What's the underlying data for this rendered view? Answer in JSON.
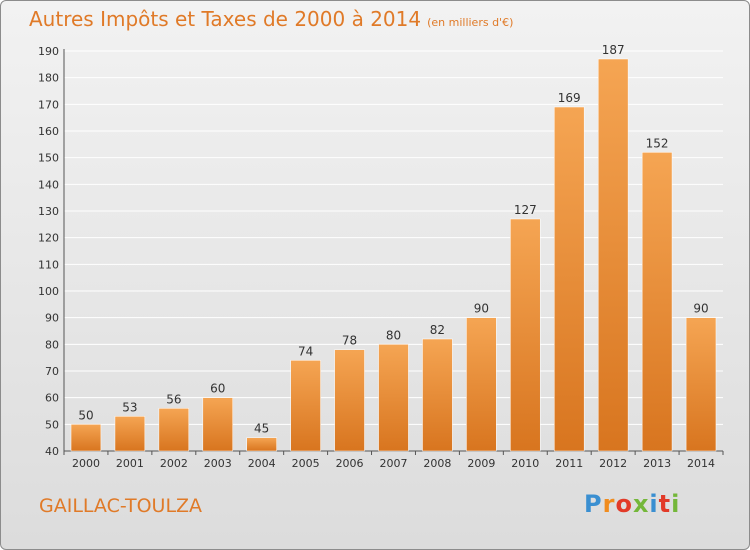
{
  "header": {
    "title": "Autres Impôts et Taxes de 2000 à 2014",
    "subtitle": "(en milliers d'€)"
  },
  "footer": {
    "commune": "GAILLAC-TOULZA",
    "logo_text": "Proxiti",
    "logo_colors": [
      "#3a8fd1",
      "#f08c1e",
      "#e23a28",
      "#74b73a",
      "#3a8fd1",
      "#e23a28",
      "#74b73a"
    ]
  },
  "colors": {
    "accent": "#e07a28",
    "bar_light": "#f5a553",
    "bar_dark": "#d8751f",
    "grid": "#ffffff"
  },
  "chart_data": {
    "type": "bar",
    "title": "Autres Impôts et Taxes de 2000 à 2014",
    "subtitle": "(en milliers d'€)",
    "categories": [
      "2000",
      "2001",
      "2002",
      "2003",
      "2004",
      "2005",
      "2006",
      "2007",
      "2008",
      "2009",
      "2010",
      "2011",
      "2012",
      "2013",
      "2014"
    ],
    "values": [
      50,
      53,
      56,
      60,
      45,
      74,
      78,
      80,
      82,
      90,
      127,
      169,
      187,
      152,
      90
    ],
    "ylim": [
      40,
      190
    ],
    "yticks": [
      40,
      50,
      60,
      70,
      80,
      90,
      100,
      110,
      120,
      130,
      140,
      150,
      160,
      170,
      180,
      190
    ],
    "grid": true,
    "data_labels": true
  }
}
